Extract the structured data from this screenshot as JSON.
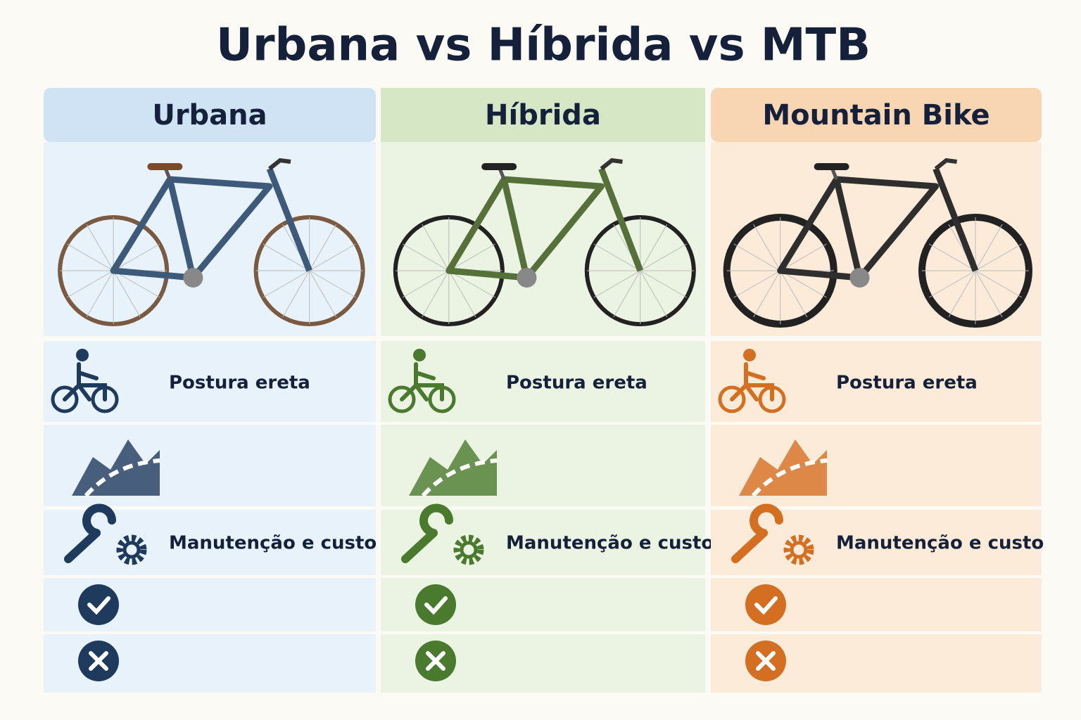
{
  "title": "Urbana vs Híbrida vs MTB",
  "columns": [
    {
      "header": "Urbana",
      "posture": "Postura ereta",
      "maintenance": "Manutenção e custo"
    },
    {
      "header": "Híbrida",
      "posture": "Postura ereta",
      "maintenance": "Manutenção e custo"
    },
    {
      "header": "Mountain Bike",
      "posture": "Postura ereta",
      "maintenance": "Manutenção e custo"
    }
  ]
}
